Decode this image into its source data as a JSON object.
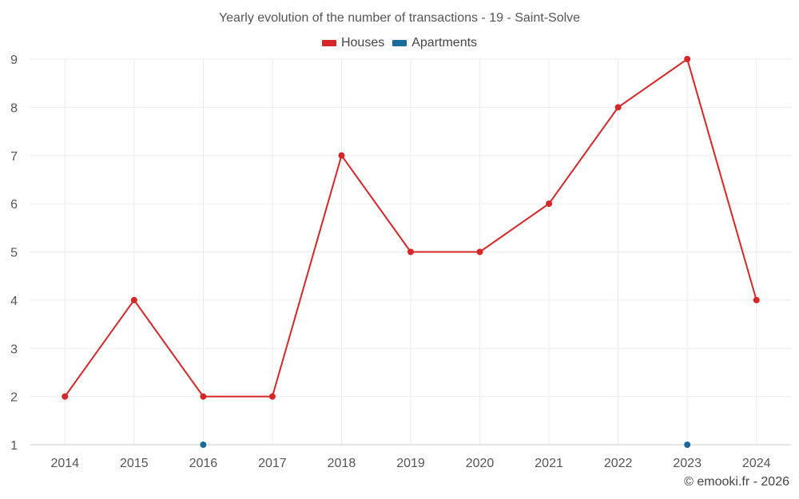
{
  "chart_data": {
    "type": "line",
    "title": "Yearly evolution of the number of transactions - 19 - Saint-Solve",
    "x": [
      "2014",
      "2015",
      "2016",
      "2017",
      "2018",
      "2019",
      "2020",
      "2021",
      "2022",
      "2023",
      "2024"
    ],
    "ylim": [
      1,
      9
    ],
    "yticks": [
      1,
      2,
      3,
      4,
      5,
      6,
      7,
      8,
      9
    ],
    "grid": true,
    "legend_position": "top-center",
    "series": [
      {
        "name": "Houses",
        "color": "#d62728",
        "values": [
          2,
          4,
          2,
          2,
          7,
          5,
          5,
          6,
          8,
          9,
          4
        ]
      },
      {
        "name": "Apartments",
        "color": "#1a6a9c",
        "values": [
          null,
          null,
          1,
          null,
          null,
          null,
          null,
          null,
          null,
          1,
          null
        ]
      }
    ]
  },
  "credit": "© emooki.fr - 2026"
}
